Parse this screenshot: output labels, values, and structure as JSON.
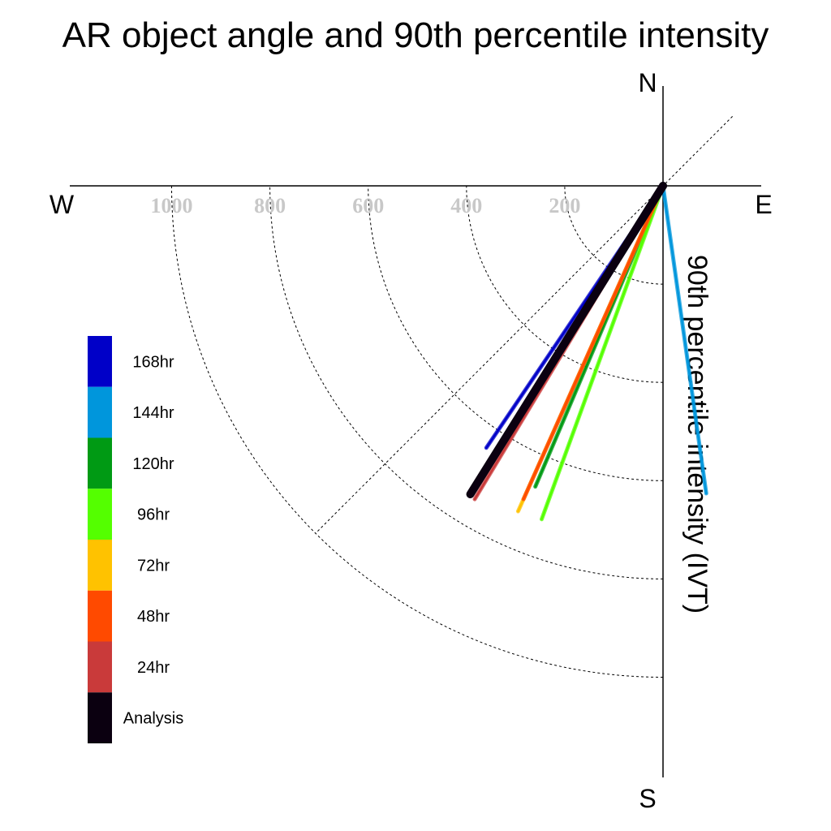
{
  "chart_data": {
    "type": "polar-vector",
    "title": "AR object angle and 90th percentile intensity",
    "ylabel": "90th percentile intensity (IVT)",
    "directions": {
      "north": "N",
      "south": "S",
      "east": "E",
      "west": "W"
    },
    "radial_ticks": [
      200,
      400,
      600,
      800,
      1000
    ],
    "radial_tick_labels": [
      "200",
      "400",
      "600",
      "800",
      "1000"
    ],
    "rlim": [
      0,
      1200
    ],
    "grid": true,
    "legend_position": "left",
    "series": [
      {
        "name": "Analysis",
        "color": "#0b0010",
        "bearing_deg": 212,
        "intensity": 740
      },
      {
        "name": "24hr",
        "color": "#c93a3a",
        "bearing_deg": 211,
        "intensity": 744
      },
      {
        "name": "48hr",
        "color": "#ff4a00",
        "bearing_deg": 204,
        "intensity": 698
      },
      {
        "name": "72hr",
        "color": "#ffc200",
        "bearing_deg": 204,
        "intensity": 725
      },
      {
        "name": "96hr",
        "color": "#54ff00",
        "bearing_deg": 200,
        "intensity": 722
      },
      {
        "name": "120hr",
        "color": "#009a14",
        "bearing_deg": 203,
        "intensity": 665
      },
      {
        "name": "144hr",
        "color": "#0096dc",
        "bearing_deg": 172,
        "intensity": 632
      },
      {
        "name": "168hr",
        "color": "#0000c8",
        "bearing_deg": 214,
        "intensity": 643
      }
    ]
  }
}
